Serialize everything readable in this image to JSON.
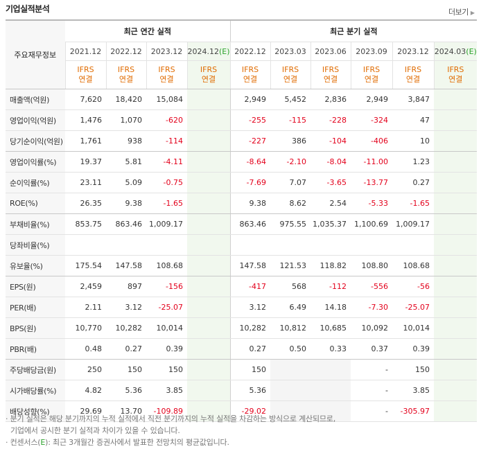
{
  "header": {
    "title": "기업실적분석",
    "more_label": "더보기"
  },
  "table": {
    "corner_label": "주요재무정보",
    "annual_group": "최근 연간 실적",
    "quarter_group": "최근 분기 실적",
    "annual_periods": [
      {
        "year": "2021.12",
        "sub": ""
      },
      {
        "year": "2022.12",
        "sub": ""
      },
      {
        "year": "2023.12",
        "sub": ""
      },
      {
        "year": "2024.12",
        "sub": "(E)"
      }
    ],
    "quarter_periods": [
      {
        "year": "2022.12",
        "sub": ""
      },
      {
        "year": "2023.03",
        "sub": ""
      },
      {
        "year": "2023.06",
        "sub": ""
      },
      {
        "year": "2023.09",
        "sub": ""
      },
      {
        "year": "2023.12",
        "sub": ""
      },
      {
        "year": "2024.03",
        "sub": "(E)"
      }
    ],
    "basis_line1": "IFRS",
    "basis_line2": "연결",
    "rows": [
      {
        "label": "매출액(억원)",
        "annual": [
          "7,620",
          "18,420",
          "15,084",
          ""
        ],
        "quarter": [
          "2,949",
          "5,452",
          "2,836",
          "2,949",
          "3,847",
          ""
        ]
      },
      {
        "label": "영업이익(억원)",
        "annual": [
          "1,476",
          "1,070",
          "-620",
          ""
        ],
        "quarter": [
          "-255",
          "-115",
          "-228",
          "-324",
          "47",
          ""
        ]
      },
      {
        "label": "당기순이익(억원)",
        "annual": [
          "1,761",
          "938",
          "-114",
          ""
        ],
        "quarter": [
          "-227",
          "386",
          "-104",
          "-406",
          "10",
          ""
        ]
      },
      {
        "label": "영업이익률(%)",
        "annual": [
          "19.37",
          "5.81",
          "-4.11",
          ""
        ],
        "quarter": [
          "-8.64",
          "-2.10",
          "-8.04",
          "-11.00",
          "1.23",
          ""
        ]
      },
      {
        "label": "순이익률(%)",
        "annual": [
          "23.11",
          "5.09",
          "-0.75",
          ""
        ],
        "quarter": [
          "-7.69",
          "7.07",
          "-3.65",
          "-13.77",
          "0.27",
          ""
        ]
      },
      {
        "label": "ROE(%)",
        "annual": [
          "26.35",
          "9.38",
          "-1.65",
          ""
        ],
        "quarter": [
          "9.38",
          "8.62",
          "2.54",
          "-5.33",
          "-1.65",
          ""
        ]
      },
      {
        "label": "부채비율(%)",
        "annual": [
          "853.75",
          "863.46",
          "1,009.17",
          ""
        ],
        "quarter": [
          "863.46",
          "975.55",
          "1,035.37",
          "1,100.69",
          "1,009.17",
          ""
        ]
      },
      {
        "label": "당좌비율(%)",
        "annual": [
          "",
          "",
          "",
          ""
        ],
        "quarter": [
          "",
          "",
          "",
          "",
          "",
          ""
        ]
      },
      {
        "label": "유보율(%)",
        "annual": [
          "175.54",
          "147.58",
          "108.68",
          ""
        ],
        "quarter": [
          "147.58",
          "121.53",
          "118.82",
          "108.80",
          "108.68",
          ""
        ]
      },
      {
        "label": "EPS(원)",
        "annual": [
          "2,459",
          "897",
          "-156",
          ""
        ],
        "quarter": [
          "-417",
          "568",
          "-112",
          "-556",
          "-56",
          ""
        ]
      },
      {
        "label": "PER(배)",
        "annual": [
          "2.11",
          "3.12",
          "-25.07",
          ""
        ],
        "quarter": [
          "3.12",
          "6.49",
          "14.18",
          "-7.30",
          "-25.07",
          ""
        ]
      },
      {
        "label": "BPS(원)",
        "annual": [
          "10,770",
          "10,282",
          "10,014",
          ""
        ],
        "quarter": [
          "10,282",
          "10,812",
          "10,685",
          "10,092",
          "10,014",
          ""
        ]
      },
      {
        "label": "PBR(배)",
        "annual": [
          "0.48",
          "0.27",
          "0.39",
          ""
        ],
        "quarter": [
          "0.27",
          "0.50",
          "0.33",
          "0.37",
          "0.39",
          ""
        ]
      },
      {
        "label": "주당배당금(원)",
        "annual": [
          "250",
          "150",
          "150",
          ""
        ],
        "quarter": [
          "150",
          "",
          "",
          "-",
          "150",
          ""
        ]
      },
      {
        "label": "시가배당률(%)",
        "annual": [
          "4.82",
          "5.36",
          "3.85",
          ""
        ],
        "quarter": [
          "5.36",
          "",
          "",
          "-",
          "3.85",
          ""
        ]
      },
      {
        "label": "배당성향(%)",
        "annual": [
          "29.69",
          "13.70",
          "-109.89",
          ""
        ],
        "quarter": [
          "-29.02",
          "",
          "",
          "-",
          "-305.97",
          ""
        ]
      }
    ],
    "gray_cells": [
      [
        13,
        1
      ],
      [
        13,
        2
      ],
      [
        14,
        1
      ],
      [
        14,
        2
      ],
      [
        15,
        1
      ],
      [
        15,
        2
      ]
    ]
  },
  "notes": {
    "line1": "· 분기 실적은 해당 분기까지의 누적 실적에서 직전 분기까지의 누적 실적을 차감하는 방식으로 계산되므로,",
    "line2": "기업에서 공시한 분기 실적과 차이가 있을 수 있습니다.",
    "line3_prefix": "· 컨센서스(",
    "line3_e": "E",
    "line3_suffix": "): 최근 3개월간 증권사에서 발표한 전망치의 평균값입니다."
  },
  "colors": {
    "negative": "#e3001b",
    "basis": "#e06b00",
    "estimate_bg": "#f1f8ee",
    "estimate_e": "#2aa22a"
  }
}
